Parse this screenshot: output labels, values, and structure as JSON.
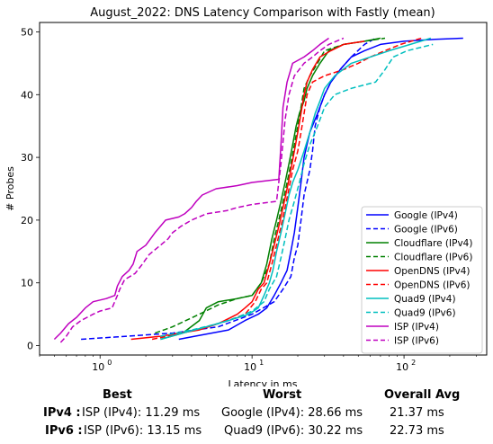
{
  "chart_data": {
    "type": "line",
    "title": "August_2022: DNS Latency Comparison with Fastly (mean)",
    "xlabel": "Latency in ms",
    "ylabel": "# Probes",
    "xscale": "log",
    "xlim": [
      0.4,
      350
    ],
    "ylim": [
      -1.5,
      51.5
    ],
    "x_ticks": [
      {
        "value": 1,
        "base": "10",
        "exp": "0"
      },
      {
        "value": 10,
        "base": "10",
        "exp": "1"
      },
      {
        "value": 100,
        "base": "10",
        "exp": "2"
      }
    ],
    "y_ticks": [
      "0",
      "10",
      "20",
      "30",
      "40",
      "50"
    ],
    "legend_position": "lower-right",
    "grid": false,
    "series": [
      {
        "name": "Google (IPv4)",
        "color": "#0000ff",
        "dash": "solid",
        "points": [
          [
            3.3,
            1
          ],
          [
            4.2,
            1.5
          ],
          [
            7,
            2.5
          ],
          [
            9,
            4
          ],
          [
            11,
            5
          ],
          [
            12.5,
            6
          ],
          [
            14,
            8
          ],
          [
            15.5,
            10
          ],
          [
            17,
            12
          ],
          [
            18,
            15
          ],
          [
            19,
            18
          ],
          [
            20,
            22
          ],
          [
            21,
            26
          ],
          [
            22,
            30
          ],
          [
            24,
            34
          ],
          [
            27,
            37
          ],
          [
            30,
            40
          ],
          [
            33,
            42
          ],
          [
            38,
            44
          ],
          [
            45,
            46
          ],
          [
            55,
            47
          ],
          [
            70,
            48
          ],
          [
            100,
            48.5
          ],
          [
            160,
            48.8
          ],
          [
            245,
            49
          ]
        ]
      },
      {
        "name": "Google (IPv6)",
        "color": "#0000ff",
        "dash": "dashed",
        "points": [
          [
            0.75,
            1
          ],
          [
            1.5,
            1.5
          ],
          [
            3,
            2
          ],
          [
            6,
            3
          ],
          [
            10,
            5
          ],
          [
            14,
            7
          ],
          [
            16,
            9
          ],
          [
            18,
            11
          ],
          [
            19,
            14
          ],
          [
            20,
            16
          ],
          [
            21,
            20
          ],
          [
            22,
            24
          ],
          [
            24,
            28
          ],
          [
            25,
            31
          ],
          [
            26,
            35
          ],
          [
            28,
            38
          ],
          [
            30,
            40
          ],
          [
            33,
            42
          ],
          [
            38,
            44
          ],
          [
            45,
            46
          ],
          [
            55,
            48
          ],
          [
            65,
            49
          ]
        ]
      },
      {
        "name": "Cloudflare (IPv4)",
        "color": "#008000",
        "dash": "solid",
        "points": [
          [
            2.5,
            1
          ],
          [
            3.5,
            2
          ],
          [
            4.5,
            4
          ],
          [
            5,
            6
          ],
          [
            6,
            7
          ],
          [
            8,
            7.5
          ],
          [
            10,
            8
          ],
          [
            11.5,
            10
          ],
          [
            12.5,
            13
          ],
          [
            13.5,
            17
          ],
          [
            14.5,
            20
          ],
          [
            15.5,
            23
          ],
          [
            16.5,
            26
          ],
          [
            17.5,
            29
          ],
          [
            18.5,
            32
          ],
          [
            19.5,
            35
          ],
          [
            20.5,
            37
          ],
          [
            22,
            39
          ],
          [
            23,
            41
          ],
          [
            25,
            43
          ],
          [
            28,
            45
          ],
          [
            32,
            47
          ],
          [
            40,
            48
          ],
          [
            55,
            48.5
          ],
          [
            70,
            49
          ]
        ]
      },
      {
        "name": "Cloudflare (IPv6)",
        "color": "#008000",
        "dash": "dashed",
        "points": [
          [
            2.3,
            2
          ],
          [
            3,
            3
          ],
          [
            4.5,
            5
          ],
          [
            6,
            6.5
          ],
          [
            8,
            7.5
          ],
          [
            10,
            8
          ],
          [
            11.5,
            10
          ],
          [
            13,
            13
          ],
          [
            14,
            17
          ],
          [
            15,
            20
          ],
          [
            16,
            23
          ],
          [
            17,
            26
          ],
          [
            18,
            29
          ],
          [
            19,
            32
          ],
          [
            20,
            35
          ],
          [
            21,
            38
          ],
          [
            22,
            41
          ],
          [
            24,
            43
          ],
          [
            27,
            45
          ],
          [
            30,
            47
          ],
          [
            40,
            48
          ],
          [
            55,
            48.5
          ],
          [
            75,
            49
          ]
        ]
      },
      {
        "name": "OpenDNS (IPv4)",
        "color": "#ff0000",
        "dash": "solid",
        "points": [
          [
            1.6,
            1
          ],
          [
            2.5,
            1.5
          ],
          [
            4.5,
            2.5
          ],
          [
            6,
            3.5
          ],
          [
            8,
            5
          ],
          [
            9,
            6
          ],
          [
            10,
            7
          ],
          [
            11,
            9
          ],
          [
            12,
            10
          ],
          [
            13,
            13
          ],
          [
            14,
            16
          ],
          [
            15,
            19
          ],
          [
            16,
            22
          ],
          [
            17,
            25
          ],
          [
            18,
            28
          ],
          [
            19,
            31
          ],
          [
            20,
            34
          ],
          [
            21,
            37
          ],
          [
            22,
            40
          ],
          [
            23,
            42
          ],
          [
            25,
            44
          ],
          [
            28,
            46
          ],
          [
            33,
            47
          ],
          [
            40,
            48
          ],
          [
            55,
            48.5
          ]
        ]
      },
      {
        "name": "OpenDNS (IPv6)",
        "color": "#ff0000",
        "dash": "dashed",
        "points": [
          [
            2.2,
            1
          ],
          [
            3.5,
            2
          ],
          [
            5,
            3
          ],
          [
            7,
            4
          ],
          [
            9,
            5
          ],
          [
            10.5,
            7
          ],
          [
            11.5,
            9
          ],
          [
            12.5,
            10
          ],
          [
            13.5,
            13
          ],
          [
            14.5,
            16
          ],
          [
            15.5,
            19
          ],
          [
            16.5,
            22
          ],
          [
            17.5,
            25
          ],
          [
            18.5,
            28
          ],
          [
            20,
            31
          ],
          [
            21,
            34
          ],
          [
            22,
            37
          ],
          [
            23,
            40
          ],
          [
            25,
            42
          ],
          [
            30,
            43
          ],
          [
            40,
            44
          ],
          [
            50,
            45
          ],
          [
            60,
            46
          ],
          [
            75,
            47
          ],
          [
            95,
            48
          ],
          [
            130,
            49
          ]
        ]
      },
      {
        "name": "Quad9 (IPv4)",
        "color": "#00bfbf",
        "dash": "solid",
        "points": [
          [
            2.5,
            1
          ],
          [
            3.5,
            2
          ],
          [
            5,
            3
          ],
          [
            7,
            4
          ],
          [
            9.5,
            5
          ],
          [
            11,
            6
          ],
          [
            12,
            8
          ],
          [
            13,
            10
          ],
          [
            13.7,
            12
          ],
          [
            14.5,
            15
          ],
          [
            15.5,
            18
          ],
          [
            16.5,
            21
          ],
          [
            17.5,
            24
          ],
          [
            18.5,
            26
          ],
          [
            20,
            28
          ],
          [
            22,
            31
          ],
          [
            24,
            34
          ],
          [
            26,
            37
          ],
          [
            28,
            39
          ],
          [
            30,
            41
          ],
          [
            35,
            43
          ],
          [
            45,
            45
          ],
          [
            60,
            46
          ],
          [
            80,
            47
          ],
          [
            110,
            48
          ],
          [
            150,
            49
          ]
        ]
      },
      {
        "name": "Quad9 (IPv6)",
        "color": "#00bfbf",
        "dash": "dashed",
        "points": [
          [
            2.5,
            1.5
          ],
          [
            4,
            2.5
          ],
          [
            6,
            3.5
          ],
          [
            8,
            4.5
          ],
          [
            10,
            5.5
          ],
          [
            12,
            7
          ],
          [
            13,
            9
          ],
          [
            14.5,
            11
          ],
          [
            15.5,
            14
          ],
          [
            16.5,
            17
          ],
          [
            17.5,
            20
          ],
          [
            19,
            23
          ],
          [
            20.5,
            26
          ],
          [
            22,
            29
          ],
          [
            24,
            32
          ],
          [
            27,
            35
          ],
          [
            30,
            38
          ],
          [
            35,
            40
          ],
          [
            45,
            41
          ],
          [
            65,
            42
          ],
          [
            75,
            44
          ],
          [
            85,
            46
          ],
          [
            105,
            47
          ],
          [
            155,
            48
          ]
        ]
      },
      {
        "name": "ISP (IPv4)",
        "color": "#bf00bf",
        "dash": "solid",
        "points": [
          [
            0.5,
            1
          ],
          [
            0.55,
            2
          ],
          [
            0.62,
            3.5
          ],
          [
            0.7,
            4.5
          ],
          [
            0.8,
            6
          ],
          [
            0.9,
            7
          ],
          [
            1.1,
            7.5
          ],
          [
            1.25,
            8
          ],
          [
            1.3,
            9.5
          ],
          [
            1.4,
            11
          ],
          [
            1.55,
            12
          ],
          [
            1.65,
            13
          ],
          [
            1.75,
            15
          ],
          [
            2.0,
            16
          ],
          [
            2.3,
            18
          ],
          [
            2.7,
            20
          ],
          [
            3.3,
            20.5
          ],
          [
            3.6,
            21
          ],
          [
            4,
            22
          ],
          [
            4.3,
            23
          ],
          [
            4.7,
            24
          ],
          [
            5.8,
            25
          ],
          [
            8,
            25.5
          ],
          [
            10,
            26
          ],
          [
            15,
            26.5
          ],
          [
            15.5,
            32
          ],
          [
            16,
            38
          ],
          [
            17,
            42
          ],
          [
            18.5,
            45
          ],
          [
            22,
            46
          ],
          [
            25,
            47
          ],
          [
            28,
            48
          ],
          [
            32,
            49
          ]
        ]
      },
      {
        "name": "ISP (IPv6)",
        "color": "#bf00bf",
        "dash": "dashed",
        "points": [
          [
            0.55,
            0.5
          ],
          [
            0.6,
            1.5
          ],
          [
            0.66,
            3
          ],
          [
            0.75,
            4
          ],
          [
            0.9,
            5
          ],
          [
            1.0,
            5.5
          ],
          [
            1.2,
            6
          ],
          [
            1.3,
            8
          ],
          [
            1.35,
            9
          ],
          [
            1.45,
            10.5
          ],
          [
            1.7,
            11.5
          ],
          [
            1.9,
            13
          ],
          [
            2.1,
            14.5
          ],
          [
            2.5,
            16
          ],
          [
            2.8,
            17
          ],
          [
            3,
            18
          ],
          [
            3.4,
            19
          ],
          [
            4,
            20
          ],
          [
            5,
            21
          ],
          [
            6.8,
            21.5
          ],
          [
            8,
            22
          ],
          [
            10,
            22.5
          ],
          [
            14.5,
            23
          ],
          [
            15.5,
            29
          ],
          [
            16.5,
            36
          ],
          [
            17.5,
            40
          ],
          [
            19,
            43
          ],
          [
            22,
            45
          ],
          [
            25,
            46
          ],
          [
            28,
            47
          ],
          [
            32,
            48
          ],
          [
            40,
            49
          ]
        ]
      }
    ]
  },
  "summary": {
    "headers": {
      "best": "Best",
      "worst": "Worst",
      "avg": "Overall Avg"
    },
    "rows": [
      {
        "label": "IPv4 :",
        "best": "ISP (IPv4): 11.29 ms",
        "worst": "Google (IPv4): 28.66 ms",
        "avg": "21.37 ms"
      },
      {
        "label": "IPv6 :",
        "best": "ISP (IPv6): 13.15 ms",
        "worst": "Quad9 (IPv6): 30.22 ms",
        "avg": "22.73 ms"
      }
    ]
  }
}
